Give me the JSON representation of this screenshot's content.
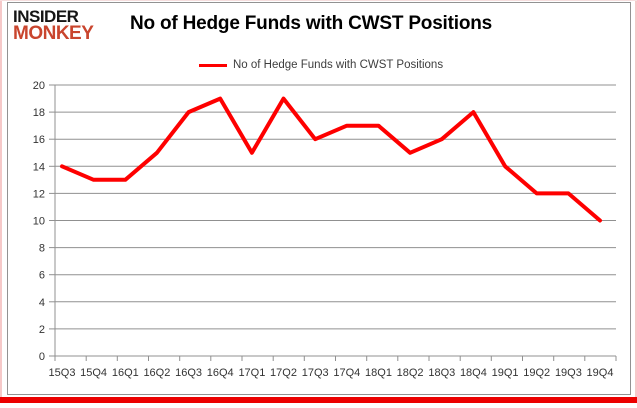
{
  "logo": {
    "line1": "INSIDER",
    "line2": "MONKEY",
    "colors": {
      "line1": "#151515",
      "line2": "#c9452e"
    }
  },
  "header": {
    "title": "No of Hedge Funds with CWST Positions"
  },
  "legend": {
    "label": "No of Hedge Funds with CWST Positions",
    "line_color": "#fe0000"
  },
  "frame": {
    "border_color": "#929292",
    "bottom_accent_color": "#ec0000",
    "side_accent_color": "#f6c9c9"
  },
  "chart_data": {
    "type": "line",
    "title": "No of Hedge Funds with CWST Positions",
    "categories": [
      "15Q3",
      "15Q4",
      "16Q1",
      "16Q2",
      "16Q3",
      "16Q4",
      "17Q1",
      "17Q2",
      "17Q3",
      "17Q4",
      "18Q1",
      "18Q2",
      "18Q3",
      "18Q4",
      "19Q1",
      "19Q2",
      "19Q3",
      "19Q4"
    ],
    "series": [
      {
        "name": "No of Hedge Funds with CWST Positions",
        "values": [
          14,
          13,
          13,
          15,
          18,
          19,
          15,
          19,
          16,
          17,
          17,
          15,
          16,
          18,
          14,
          12,
          12,
          10
        ]
      }
    ],
    "xlabel": "",
    "ylabel": "",
    "ylim": [
      0,
      20
    ],
    "ytick_step": 2,
    "grid": "horizontal",
    "grid_color": "#909090",
    "axis_text_color": "#333333",
    "line_color": "#fe0000",
    "line_width": 4,
    "legend_position": "top"
  }
}
